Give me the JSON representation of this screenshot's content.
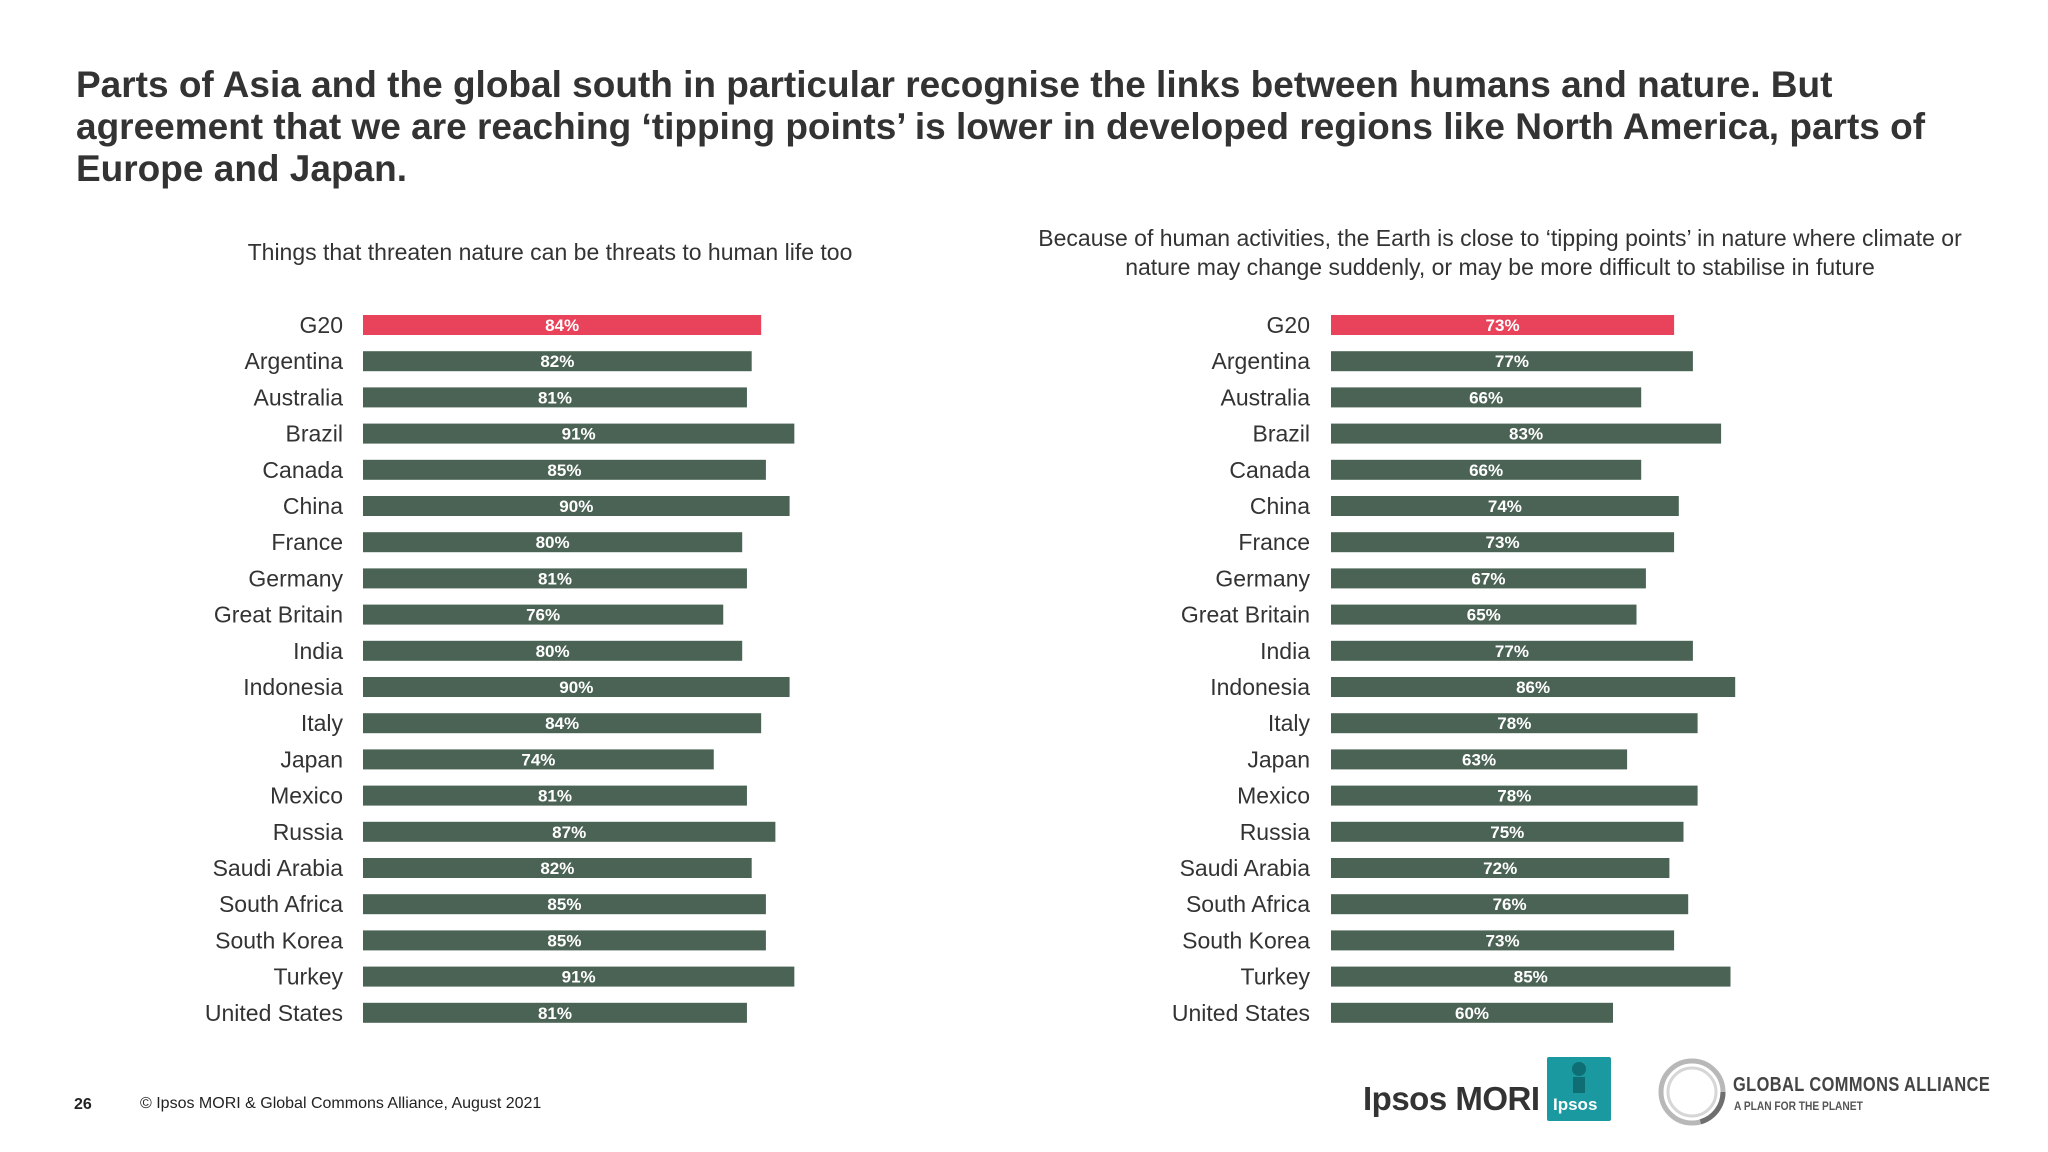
{
  "headline": "Parts of Asia and the global south in particular recognise the links between humans and nature. But agreement that we are reaching ‘tipping points’ is lower in developed regions like North America, parts of Europe and Japan.",
  "footer": {
    "page_number": "26",
    "copyright": "© Ipsos MORI & Global Commons Alliance, August 2021"
  },
  "logos": {
    "ipsos_mori": "Ipsos MORI",
    "ipsos_box": "Ipsos",
    "gca_name": "GLOBAL COMMONS ALLIANCE",
    "gca_tagline": "A PLAN FOR THE PLANET"
  },
  "colors": {
    "highlight": "#e8435a",
    "bar": "#4a6355",
    "text": "#333333"
  },
  "chart_data": [
    {
      "type": "bar",
      "orientation": "horizontal",
      "title": "Things that threaten nature can be threats to human life too",
      "categories": [
        "G20",
        "Argentina",
        "Australia",
        "Brazil",
        "Canada",
        "China",
        "France",
        "Germany",
        "Great Britain",
        "India",
        "Indonesia",
        "Italy",
        "Japan",
        "Mexico",
        "Russia",
        "Saudi Arabia",
        "South Africa",
        "South Korea",
        "Turkey",
        "United States"
      ],
      "values": [
        84,
        82,
        81,
        91,
        85,
        90,
        80,
        81,
        76,
        80,
        90,
        84,
        74,
        81,
        87,
        82,
        85,
        85,
        91,
        81
      ],
      "value_labels": [
        "84%",
        "82%",
        "81%",
        "91%",
        "85%",
        "90%",
        "80%",
        "81%",
        "76%",
        "80%",
        "90%",
        "84%",
        "74%",
        "81%",
        "87%",
        "82%",
        "85%",
        "85%",
        "91%",
        "81%"
      ],
      "highlight_category": "G20",
      "unit": "%",
      "xlim": [
        0,
        100
      ],
      "grid": false,
      "legend": "none"
    },
    {
      "type": "bar",
      "orientation": "horizontal",
      "title": "Because of human activities, the Earth is close to ‘tipping points’ in nature where climate or nature may change suddenly, or may be more difficult to stabilise in future",
      "categories": [
        "G20",
        "Argentina",
        "Australia",
        "Brazil",
        "Canada",
        "China",
        "France",
        "Germany",
        "Great Britain",
        "India",
        "Indonesia",
        "Italy",
        "Japan",
        "Mexico",
        "Russia",
        "Saudi Arabia",
        "South Africa",
        "South Korea",
        "Turkey",
        "United States"
      ],
      "values": [
        73,
        77,
        66,
        83,
        66,
        74,
        73,
        67,
        65,
        77,
        86,
        78,
        63,
        78,
        75,
        72,
        76,
        73,
        85,
        60
      ],
      "value_labels": [
        "73%",
        "77%",
        "66%",
        "83%",
        "66%",
        "74%",
        "73%",
        "67%",
        "65%",
        "77%",
        "86%",
        "78%",
        "63%",
        "78%",
        "75%",
        "72%",
        "76%",
        "73%",
        "85%",
        "60%"
      ],
      "highlight_category": "G20",
      "unit": "%",
      "xlim": [
        0,
        100
      ],
      "grid": false,
      "legend": "none"
    }
  ]
}
